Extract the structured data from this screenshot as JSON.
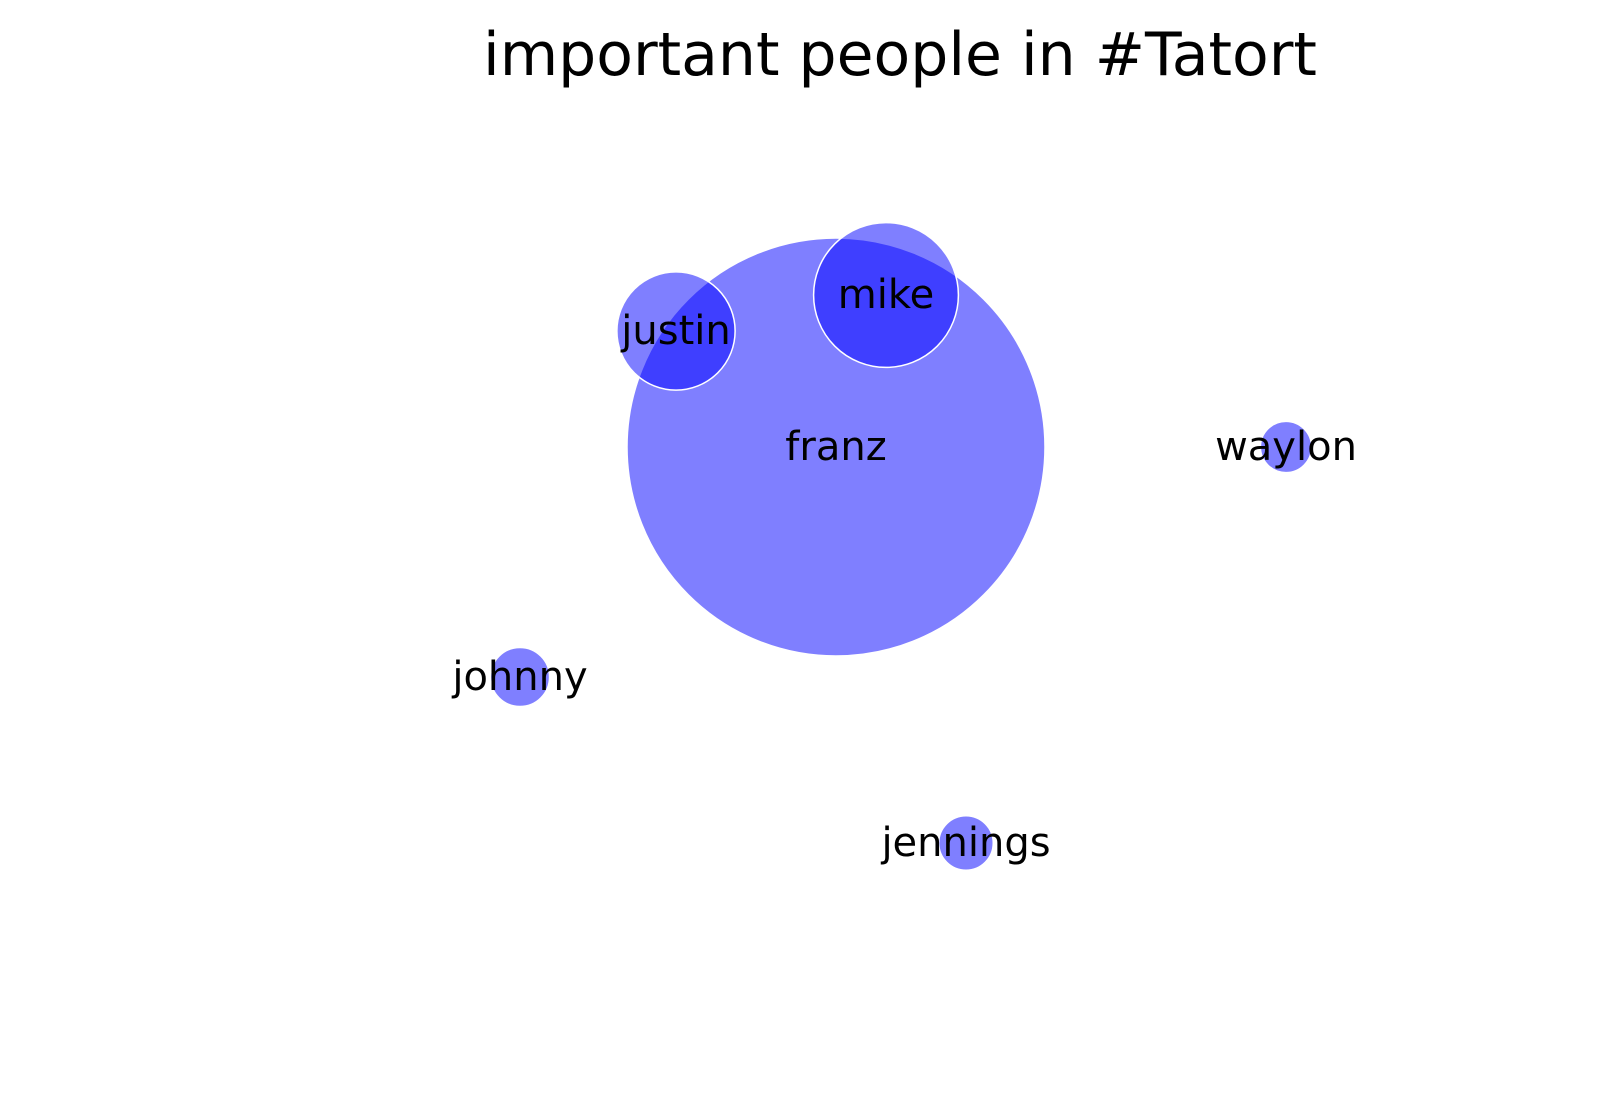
{
  "chart_data": {
    "type": "scatter",
    "title": "important people in #Tatort",
    "xlabel": "",
    "ylabel": "",
    "grid": false,
    "axes_visible": false,
    "bubble_color": "#0000ff",
    "bubble_opacity": 0.5,
    "points": [
      {
        "label": "franz",
        "x": 0.0,
        "y": 0.0,
        "size": 100
      },
      {
        "label": "mike",
        "x": 0.25,
        "y": 0.76,
        "size": 12
      },
      {
        "label": "justin",
        "x": -0.8,
        "y": 0.58,
        "size": 8
      },
      {
        "label": "waylon",
        "x": 2.25,
        "y": 0.0,
        "size": 1.5
      },
      {
        "label": "johnny",
        "x": -1.58,
        "y": -1.15,
        "size": 2
      },
      {
        "label": "jennings",
        "x": 0.65,
        "y": -1.98,
        "size": 1.7
      }
    ]
  }
}
